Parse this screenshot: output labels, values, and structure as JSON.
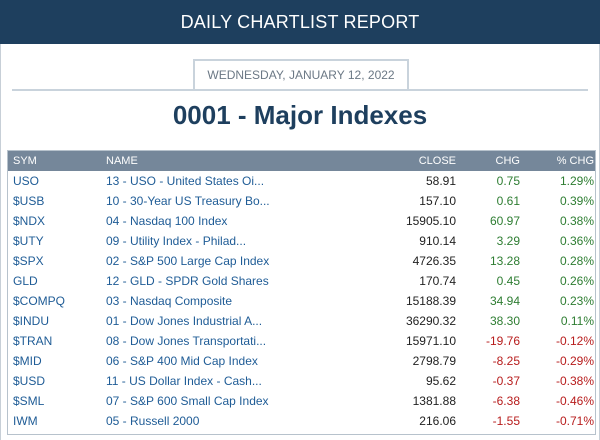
{
  "header": {
    "title": "DAILY CHARTLIST REPORT"
  },
  "report": {
    "date": "WEDNESDAY, JANUARY 12, 2022",
    "title": "0001 - Major Indexes"
  },
  "table": {
    "columns": [
      "SYM",
      "NAME",
      "CLOSE",
      "CHG",
      "% CHG"
    ],
    "rows": [
      {
        "sym": "USO",
        "name": "13 - USO - United States Oi...",
        "close": "58.91",
        "chg": "0.75",
        "pct": "1.29%",
        "dir": "pos"
      },
      {
        "sym": "$USB",
        "name": "10 - 30-Year US Treasury Bo...",
        "close": "157.10",
        "chg": "0.61",
        "pct": "0.39%",
        "dir": "pos"
      },
      {
        "sym": "$NDX",
        "name": "04 - Nasdaq 100 Index",
        "close": "15905.10",
        "chg": "60.97",
        "pct": "0.38%",
        "dir": "pos"
      },
      {
        "sym": "$UTY",
        "name": "09 - Utility Index - Philad...",
        "close": "910.14",
        "chg": "3.29",
        "pct": "0.36%",
        "dir": "pos"
      },
      {
        "sym": "$SPX",
        "name": "02 - S&P 500 Large Cap Index",
        "close": "4726.35",
        "chg": "13.28",
        "pct": "0.28%",
        "dir": "pos"
      },
      {
        "sym": "GLD",
        "name": "12 - GLD - SPDR Gold Shares",
        "close": "170.74",
        "chg": "0.45",
        "pct": "0.26%",
        "dir": "pos"
      },
      {
        "sym": "$COMPQ",
        "name": "03 - Nasdaq Composite",
        "close": "15188.39",
        "chg": "34.94",
        "pct": "0.23%",
        "dir": "pos"
      },
      {
        "sym": "$INDU",
        "name": "01 - Dow Jones Industrial A...",
        "close": "36290.32",
        "chg": "38.30",
        "pct": "0.11%",
        "dir": "pos"
      },
      {
        "sym": "$TRAN",
        "name": "08 - Dow Jones Transportati...",
        "close": "15971.10",
        "chg": "-19.76",
        "pct": "-0.12%",
        "dir": "neg"
      },
      {
        "sym": "$MID",
        "name": "06 - S&P 400 Mid Cap Index",
        "close": "2798.79",
        "chg": "-8.25",
        "pct": "-0.29%",
        "dir": "neg"
      },
      {
        "sym": "$USD",
        "name": "11 - US Dollar Index - Cash...",
        "close": "95.62",
        "chg": "-0.37",
        "pct": "-0.38%",
        "dir": "neg"
      },
      {
        "sym": "$SML",
        "name": "07 - S&P 600 Small Cap Index",
        "close": "1381.88",
        "chg": "-6.38",
        "pct": "-0.46%",
        "dir": "neg"
      },
      {
        "sym": "IWM",
        "name": "05 - Russell 2000",
        "close": "216.06",
        "chg": "-1.55",
        "pct": "-0.71%",
        "dir": "neg"
      }
    ]
  },
  "colors": {
    "banner": "#1e3f5e",
    "positive": "#2e7d32",
    "negative": "#b71c1c",
    "link": "#1f5c96",
    "table_header": "#75879a"
  }
}
